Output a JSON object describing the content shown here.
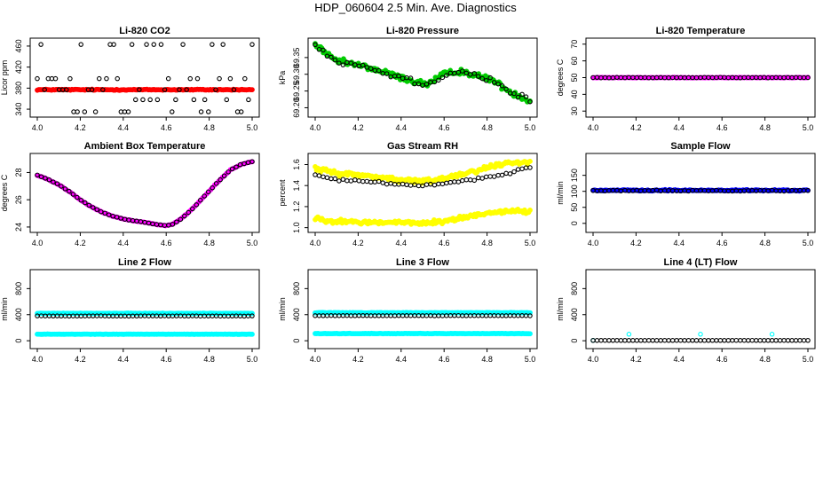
{
  "page": {
    "title": "HDP_060604  2.5 Min. Ave. Diagnostics"
  },
  "colors": {
    "red": "#ff0000",
    "green": "#00cc00",
    "magenta": "#ff00ff",
    "yellow": "#ffff00",
    "blue": "#0000ff",
    "cyan": "#00ffff",
    "black": "#000000"
  },
  "chart_data": [
    {
      "type": "scatter",
      "title": "Li-820 CO2",
      "xlabel": "",
      "ylabel": "Licor ppm",
      "xlim": [
        4.0,
        5.0
      ],
      "ylim": [
        330,
        470
      ],
      "xticks": [
        4.0,
        4.2,
        4.4,
        4.6,
        4.8,
        5.0
      ],
      "xtick_labels": [
        "4.0",
        "4.2",
        "4.4",
        "4.6",
        "4.8",
        "5.0"
      ],
      "yticks": [
        340,
        380,
        420,
        460
      ],
      "ytick_labels": [
        "340",
        "380",
        "420",
        "460"
      ],
      "series": [
        {
          "color": "red",
          "gen": {
            "kind": "flat",
            "n": 150,
            "base": 377,
            "noise": 1.5
          }
        },
        {
          "color": "black",
          "hollow": true,
          "gen": {
            "kind": "scatter",
            "n": 60,
            "levels": [
              335,
              358,
              377,
              398,
              463
            ]
          }
        }
      ]
    },
    {
      "type": "scatter",
      "title": "Li-820 Pressure",
      "xlabel": "",
      "ylabel": "kPa",
      "xlim": [
        4.0,
        5.0
      ],
      "ylim": [
        69.18,
        69.4
      ],
      "xticks": [
        4.0,
        4.2,
        4.4,
        4.6,
        4.8,
        5.0
      ],
      "xtick_labels": [
        "4.0",
        "4.2",
        "4.4",
        "4.6",
        "4.8",
        "5.0"
      ],
      "yticks": [
        69.2,
        69.25,
        69.3,
        69.35
      ],
      "ytick_labels": [
        "69.20",
        "69.25",
        "69.30",
        "69.35"
      ],
      "series": [
        {
          "color": "green",
          "gen": {
            "kind": "curve",
            "n": 160,
            "noise": 0.012,
            "knots": [
              [
                4.0,
                69.39
              ],
              [
                4.05,
                69.36
              ],
              [
                4.1,
                69.34
              ],
              [
                4.18,
                69.33
              ],
              [
                4.25,
                69.32
              ],
              [
                4.35,
                69.3
              ],
              [
                4.45,
                69.28
              ],
              [
                4.52,
                69.27
              ],
              [
                4.6,
                69.3
              ],
              [
                4.68,
                69.31
              ],
              [
                4.75,
                69.295
              ],
              [
                4.82,
                69.285
              ],
              [
                4.9,
                69.25
              ],
              [
                5.0,
                69.22
              ]
            ]
          }
        },
        {
          "color": "black",
          "hollow": true,
          "gen": {
            "kind": "curve",
            "n": 55,
            "noise": 0.015,
            "knots": [
              [
                4.0,
                69.39
              ],
              [
                4.05,
                69.36
              ],
              [
                4.1,
                69.34
              ],
              [
                4.18,
                69.33
              ],
              [
                4.25,
                69.32
              ],
              [
                4.35,
                69.3
              ],
              [
                4.45,
                69.28
              ],
              [
                4.52,
                69.27
              ],
              [
                4.6,
                69.3
              ],
              [
                4.68,
                69.31
              ],
              [
                4.75,
                69.295
              ],
              [
                4.82,
                69.285
              ],
              [
                4.9,
                69.25
              ],
              [
                5.0,
                69.22
              ]
            ]
          }
        }
      ]
    },
    {
      "type": "scatter",
      "title": "Li-820 Temperature",
      "xlabel": "",
      "ylabel": "degrees C",
      "xlim": [
        4.0,
        5.0
      ],
      "ylim": [
        28,
        72
      ],
      "xticks": [
        4.0,
        4.2,
        4.4,
        4.6,
        4.8,
        5.0
      ],
      "xtick_labels": [
        "4.0",
        "4.2",
        "4.4",
        "4.6",
        "4.8",
        "5.0"
      ],
      "yticks": [
        30,
        40,
        50,
        60,
        70
      ],
      "ytick_labels": [
        "30",
        "40",
        "50",
        "60",
        "70"
      ],
      "series": [
        {
          "color": "magenta",
          "gen": {
            "kind": "flat",
            "n": 120,
            "base": 50,
            "noise": 0.2
          }
        },
        {
          "color": "black",
          "hollow": true,
          "gen": {
            "kind": "flat",
            "n": 55,
            "base": 50,
            "noise": 0.2
          }
        }
      ]
    },
    {
      "type": "scatter",
      "title": "Ambient Box Temperature",
      "xlabel": "",
      "ylabel": "degrees C",
      "xlim": [
        4.0,
        5.0
      ],
      "ylim": [
        23.8,
        29.2
      ],
      "xticks": [
        4.0,
        4.2,
        4.4,
        4.6,
        4.8,
        5.0
      ],
      "xtick_labels": [
        "4.0",
        "4.2",
        "4.4",
        "4.6",
        "4.8",
        "5.0"
      ],
      "yticks": [
        24,
        26,
        28
      ],
      "ytick_labels": [
        "24",
        "26",
        "28"
      ],
      "series": [
        {
          "color": "magenta",
          "gen": {
            "kind": "curve",
            "n": 110,
            "noise": 0.03,
            "knots": [
              [
                4.0,
                27.8
              ],
              [
                4.05,
                27.5
              ],
              [
                4.1,
                27.1
              ],
              [
                4.15,
                26.6
              ],
              [
                4.2,
                26.0
              ],
              [
                4.25,
                25.5
              ],
              [
                4.3,
                25.1
              ],
              [
                4.35,
                24.8
              ],
              [
                4.4,
                24.6
              ],
              [
                4.45,
                24.45
              ],
              [
                4.5,
                24.35
              ],
              [
                4.55,
                24.2
              ],
              [
                4.6,
                24.1
              ],
              [
                4.63,
                24.2
              ],
              [
                4.67,
                24.6
              ],
              [
                4.72,
                25.3
              ],
              [
                4.78,
                26.3
              ],
              [
                4.84,
                27.3
              ],
              [
                4.9,
                28.2
              ],
              [
                4.95,
                28.6
              ],
              [
                5.0,
                28.8
              ]
            ]
          }
        },
        {
          "color": "black",
          "hollow": true,
          "gen": {
            "kind": "curve",
            "n": 55,
            "noise": 0.02,
            "knots": [
              [
                4.0,
                27.8
              ],
              [
                4.05,
                27.5
              ],
              [
                4.1,
                27.1
              ],
              [
                4.15,
                26.6
              ],
              [
                4.2,
                26.0
              ],
              [
                4.25,
                25.5
              ],
              [
                4.3,
                25.1
              ],
              [
                4.35,
                24.8
              ],
              [
                4.4,
                24.6
              ],
              [
                4.45,
                24.45
              ],
              [
                4.5,
                24.35
              ],
              [
                4.55,
                24.2
              ],
              [
                4.6,
                24.1
              ],
              [
                4.63,
                24.2
              ],
              [
                4.67,
                24.6
              ],
              [
                4.72,
                25.3
              ],
              [
                4.78,
                26.3
              ],
              [
                4.84,
                27.3
              ],
              [
                4.9,
                28.2
              ],
              [
                4.95,
                28.6
              ],
              [
                5.0,
                28.8
              ]
            ]
          }
        }
      ]
    },
    {
      "type": "scatter",
      "title": "Gas Stream RH",
      "xlabel": "",
      "ylabel": "percent",
      "xlim": [
        4.0,
        5.0
      ],
      "ylim": [
        0.98,
        1.68
      ],
      "xticks": [
        4.0,
        4.2,
        4.4,
        4.6,
        4.8,
        5.0
      ],
      "xtick_labels": [
        "4.0",
        "4.2",
        "4.4",
        "4.6",
        "4.8",
        "5.0"
      ],
      "yticks": [
        1.0,
        1.2,
        1.4,
        1.6
      ],
      "ytick_labels": [
        "1.0",
        "1.2",
        "1.4",
        "1.6"
      ],
      "series": [
        {
          "color": "yellow",
          "gen": {
            "kind": "curve",
            "n": 160,
            "noise": 0.035,
            "knots": [
              [
                4.0,
                1.56
              ],
              [
                4.1,
                1.52
              ],
              [
                4.2,
                1.5
              ],
              [
                4.3,
                1.48
              ],
              [
                4.4,
                1.45
              ],
              [
                4.5,
                1.44
              ],
              [
                4.6,
                1.47
              ],
              [
                4.7,
                1.52
              ],
              [
                4.8,
                1.57
              ],
              [
                4.9,
                1.62
              ],
              [
                5.0,
                1.62
              ]
            ]
          }
        },
        {
          "color": "yellow",
          "gen": {
            "kind": "curve",
            "n": 160,
            "noise": 0.03,
            "knots": [
              [
                4.0,
                1.09
              ],
              [
                4.1,
                1.06
              ],
              [
                4.2,
                1.05
              ],
              [
                4.3,
                1.05
              ],
              [
                4.4,
                1.05
              ],
              [
                4.5,
                1.04
              ],
              [
                4.6,
                1.06
              ],
              [
                4.7,
                1.1
              ],
              [
                4.8,
                1.14
              ],
              [
                4.9,
                1.16
              ],
              [
                5.0,
                1.15
              ]
            ]
          }
        },
        {
          "color": "black",
          "hollow": true,
          "gen": {
            "kind": "curve",
            "n": 55,
            "noise": 0.015,
            "knots": [
              [
                4.0,
                1.5
              ],
              [
                4.1,
                1.46
              ],
              [
                4.2,
                1.44
              ],
              [
                4.3,
                1.43
              ],
              [
                4.4,
                1.41
              ],
              [
                4.5,
                1.4
              ],
              [
                4.6,
                1.42
              ],
              [
                4.7,
                1.45
              ],
              [
                4.8,
                1.48
              ],
              [
                4.9,
                1.52
              ],
              [
                5.0,
                1.58
              ]
            ]
          }
        }
      ]
    },
    {
      "type": "scatter",
      "title": "Sample Flow",
      "xlabel": "",
      "ylabel": "ml/min",
      "xlim": [
        4.0,
        5.0
      ],
      "ylim": [
        -20,
        210
      ],
      "xticks": [
        4.0,
        4.2,
        4.4,
        4.6,
        4.8,
        5.0
      ],
      "xtick_labels": [
        "4.0",
        "4.2",
        "4.4",
        "4.6",
        "4.8",
        "5.0"
      ],
      "yticks": [
        0,
        50,
        100,
        150
      ],
      "ytick_labels": [
        "0",
        "50",
        "100",
        "150"
      ],
      "series": [
        {
          "color": "blue",
          "gen": {
            "kind": "flat",
            "n": 150,
            "base": 103,
            "noise": 3
          }
        },
        {
          "color": "black",
          "hollow": true,
          "gen": {
            "kind": "flat",
            "n": 55,
            "base": 102,
            "noise": 2
          }
        }
      ]
    },
    {
      "type": "scatter",
      "title": "Line 2 Flow",
      "xlabel": "",
      "ylabel": "ml/min",
      "xlim": [
        4.0,
        5.0
      ],
      "ylim": [
        -80,
        1050
      ],
      "xticks": [
        4.0,
        4.2,
        4.4,
        4.6,
        4.8,
        5.0
      ],
      "xtick_labels": [
        "4.0",
        "4.2",
        "4.4",
        "4.6",
        "4.8",
        "5.0"
      ],
      "yticks": [
        0,
        400,
        800
      ],
      "ytick_labels": [
        "0",
        "400",
        "800"
      ],
      "series": [
        {
          "color": "cyan",
          "gen": {
            "kind": "flat",
            "n": 150,
            "base": 420,
            "noise": 5
          }
        },
        {
          "color": "cyan",
          "gen": {
            "kind": "flat",
            "n": 150,
            "base": 100,
            "noise": 4
          }
        },
        {
          "color": "black",
          "hollow": true,
          "gen": {
            "kind": "flat",
            "n": 55,
            "base": 380,
            "noise": 3
          }
        }
      ]
    },
    {
      "type": "scatter",
      "title": "Line 3 Flow",
      "xlabel": "",
      "ylabel": "ml/min",
      "xlim": [
        4.0,
        5.0
      ],
      "ylim": [
        -80,
        1050
      ],
      "xticks": [
        4.0,
        4.2,
        4.4,
        4.6,
        4.8,
        5.0
      ],
      "xtick_labels": [
        "4.0",
        "4.2",
        "4.4",
        "4.6",
        "4.8",
        "5.0"
      ],
      "yticks": [
        0,
        400,
        800
      ],
      "ytick_labels": [
        "0",
        "400",
        "800"
      ],
      "series": [
        {
          "color": "cyan",
          "gen": {
            "kind": "flat",
            "n": 150,
            "base": 430,
            "noise": 5
          }
        },
        {
          "color": "cyan",
          "gen": {
            "kind": "flat",
            "n": 150,
            "base": 110,
            "noise": 4
          }
        },
        {
          "color": "black",
          "hollow": true,
          "gen": {
            "kind": "flat",
            "n": 55,
            "base": 385,
            "noise": 3
          }
        }
      ]
    },
    {
      "type": "scatter",
      "title": "Line 4 (LT) Flow",
      "xlabel": "",
      "ylabel": "ml/min",
      "xlim": [
        4.0,
        5.0
      ],
      "ylim": [
        -80,
        1050
      ],
      "xticks": [
        4.0,
        4.2,
        4.4,
        4.6,
        4.8,
        5.0
      ],
      "xtick_labels": [
        "4.0",
        "4.2",
        "4.4",
        "4.6",
        "4.8",
        "5.0"
      ],
      "yticks": [
        0,
        400,
        800
      ],
      "ytick_labels": [
        "0",
        "400",
        "800"
      ],
      "series": [
        {
          "color": "cyan",
          "hollow": true,
          "points": [
            [
              4.0,
              5
            ],
            [
              4.167,
              100
            ],
            [
              4.5,
              100
            ],
            [
              4.833,
              100
            ]
          ]
        },
        {
          "color": "black",
          "hollow": true,
          "gen": {
            "kind": "flat",
            "n": 55,
            "base": 5,
            "noise": 1
          }
        }
      ]
    }
  ]
}
